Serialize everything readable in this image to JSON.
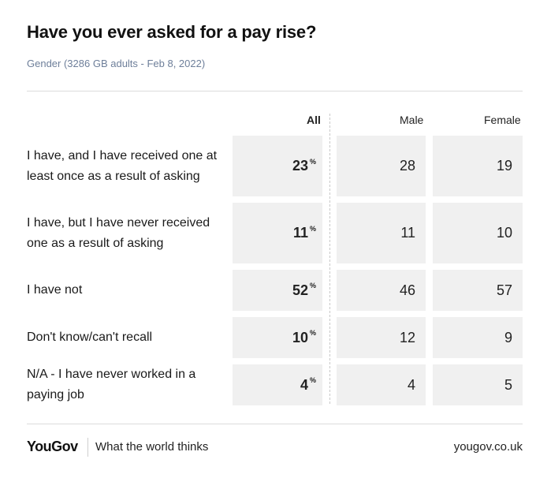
{
  "header": {
    "title": "Have you ever asked for a pay rise?",
    "subtitle": "Gender (3286 GB adults - Feb 8, 2022)"
  },
  "columns": [
    "All",
    "Male",
    "Female"
  ],
  "percent_sign": "%",
  "rows": [
    {
      "label": "I have, and I have received one at least once as a result of asking",
      "all": "23",
      "male": "28",
      "female": "19"
    },
    {
      "label": "I have, but I have never received one as a result of asking",
      "all": "11",
      "male": "11",
      "female": "10"
    },
    {
      "label": "I have not",
      "all": "52",
      "male": "46",
      "female": "57"
    },
    {
      "label": "Don't know/can't recall",
      "all": "10",
      "male": "12",
      "female": "9"
    },
    {
      "label": "N/A - I have never worked in a paying job",
      "all": "4",
      "male": "4",
      "female": "5"
    }
  ],
  "footer": {
    "logo": "YouGov",
    "tagline": "What the world thinks",
    "url": "yougov.co.uk"
  },
  "chart_data": {
    "type": "table",
    "title": "Have you ever asked for a pay rise?",
    "subtitle": "Gender (3286 GB adults - Feb 8, 2022)",
    "columns": [
      "All",
      "Male",
      "Female"
    ],
    "categories": [
      "I have, and I have received one at least once as a result of asking",
      "I have, but I have never received one as a result of asking",
      "I have not",
      "Don't know/can't recall",
      "N/A - I have never worked in a paying job"
    ],
    "series": [
      {
        "name": "All",
        "values": [
          23,
          11,
          52,
          10,
          4
        ]
      },
      {
        "name": "Male",
        "values": [
          28,
          11,
          46,
          12,
          4
        ]
      },
      {
        "name": "Female",
        "values": [
          19,
          10,
          57,
          9,
          5
        ]
      }
    ]
  }
}
